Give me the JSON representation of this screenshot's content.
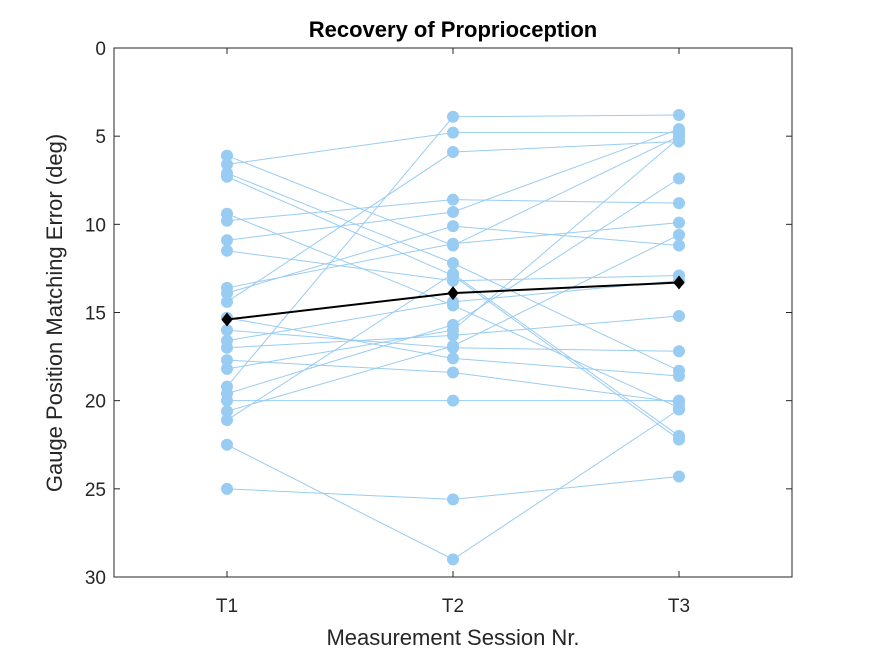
{
  "chart_data": {
    "type": "line",
    "title": "Recovery of Proprioception",
    "xlabel": "Measurement Session Nr.",
    "ylabel": "Gauge Position Matching Error (deg)",
    "categories": [
      "T1",
      "T2",
      "T3"
    ],
    "ylim": [
      0,
      30
    ],
    "y_reversed": true,
    "yticks": [
      0,
      5,
      10,
      15,
      20,
      25,
      30
    ],
    "grid": false,
    "legend": "none",
    "colors": {
      "subjects": "#99CCF2",
      "mean": "#000000",
      "axes": "#262626"
    },
    "subjects": [
      [
        6.1,
        11.2,
        5.0
      ],
      [
        6.6,
        4.8,
        4.8
      ],
      [
        7.1,
        12.2,
        18.3
      ],
      [
        7.3,
        12.9,
        22.2
      ],
      [
        9.4,
        14.6,
        20.4
      ],
      [
        9.8,
        8.6,
        8.8
      ],
      [
        10.9,
        9.3,
        4.6
      ],
      [
        11.5,
        13.2,
        12.9
      ],
      [
        13.6,
        11.1,
        9.9
      ],
      [
        13.9,
        10.1,
        11.2
      ],
      [
        14.4,
        5.9,
        5.3
      ],
      [
        15.3,
        17.6,
        18.6
      ],
      [
        16.0,
        17.0,
        17.2
      ],
      [
        16.6,
        14.4,
        13.2
      ],
      [
        17.0,
        16.3,
        15.2
      ],
      [
        17.7,
        18.4,
        20.1
      ],
      [
        18.2,
        16.0,
        5.1
      ],
      [
        19.2,
        3.9,
        3.8
      ],
      [
        19.6,
        15.7,
        7.4
      ],
      [
        20.0,
        20.0,
        20.0
      ],
      [
        20.6,
        16.9,
        10.6
      ],
      [
        21.1,
        12.8,
        22.0
      ],
      [
        22.5,
        29.0,
        20.5
      ],
      [
        25.0,
        25.6,
        24.3
      ]
    ],
    "series": [
      {
        "name": "",
        "values": [
          15.4,
          13.9,
          13.3
        ]
      }
    ]
  }
}
